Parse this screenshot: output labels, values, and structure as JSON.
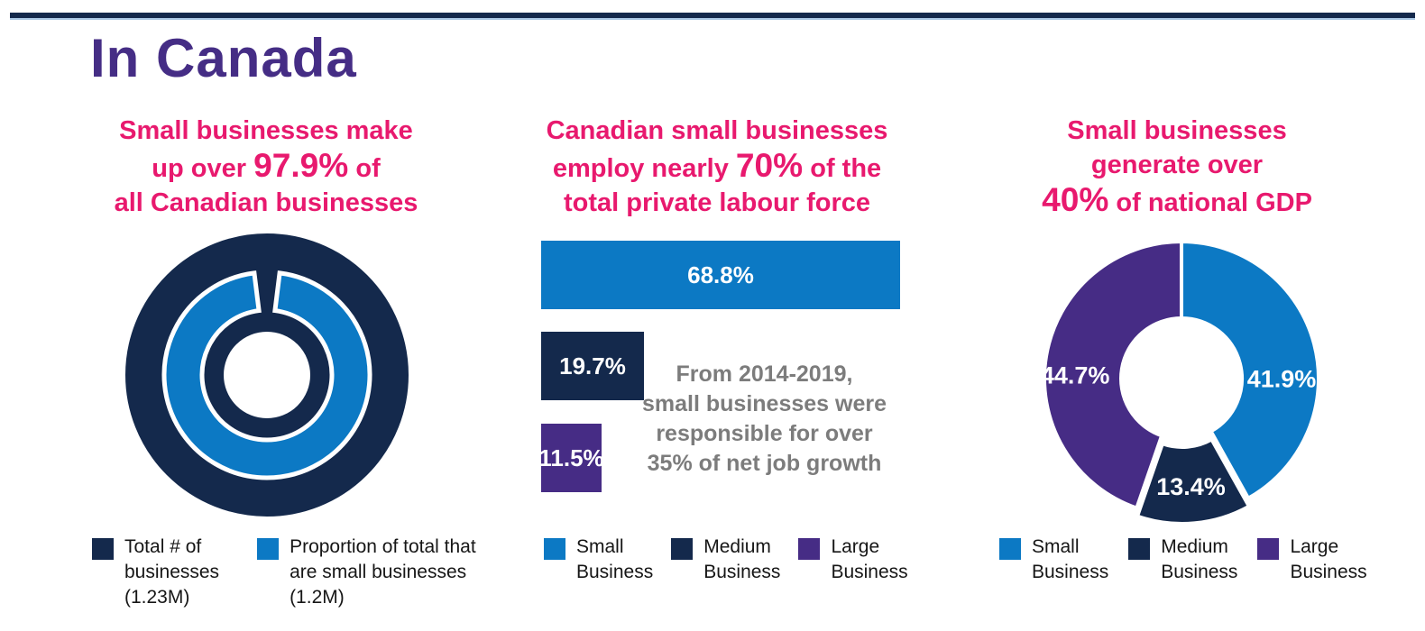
{
  "page": {
    "title": "In Canada"
  },
  "colors": {
    "navy": "#14294C",
    "blue": "#0C79C4",
    "purple": "#462C85",
    "pink": "#E8196E",
    "title_purple": "#452D85",
    "note_gray": "#7C7C7C",
    "legend_text": "#161616",
    "rule_light": "#A9C7E4",
    "white": "#FFFFFF"
  },
  "sections": {
    "makeup": {
      "heading": [
        {
          "pre": "Small businesses make"
        },
        {
          "pre": "up over ",
          "emph": "97.9%",
          "post": " of"
        },
        {
          "pre": "all Canadian businesses"
        }
      ],
      "legend": [
        {
          "color": "navy",
          "lines": [
            "Total # of",
            "businesses",
            "(1.23M)"
          ]
        },
        {
          "color": "blue",
          "lines": [
            "Proportion of total that",
            "are small businesses",
            "(1.2M)"
          ]
        }
      ]
    },
    "employment": {
      "heading": [
        {
          "pre": "Canadian small businesses"
        },
        {
          "pre": "employ nearly ",
          "emph": "70%",
          "post": " of the"
        },
        {
          "pre": "total private labour force"
        }
      ],
      "note_lines": [
        "From 2014-2019,",
        "small businesses were",
        "responsible for over",
        "35% of net job growth"
      ],
      "legend": [
        {
          "color": "blue",
          "lines": [
            "Small",
            "Business"
          ]
        },
        {
          "color": "navy",
          "lines": [
            "Medium",
            "Business"
          ]
        },
        {
          "color": "purple",
          "lines": [
            "Large",
            "Business"
          ]
        }
      ]
    },
    "gdp": {
      "heading": [
        {
          "pre": "Small businesses"
        },
        {
          "pre": "generate over"
        },
        {
          "emph": "40%",
          "post": " of national GDP"
        }
      ],
      "legend": [
        {
          "color": "blue",
          "lines": [
            "Small",
            "Business"
          ]
        },
        {
          "color": "navy",
          "lines": [
            "Medium",
            "Business"
          ]
        },
        {
          "color": "purple",
          "lines": [
            "Large",
            "Business"
          ]
        }
      ]
    }
  },
  "chart_data": [
    {
      "id": "makeup-donut",
      "type": "pie",
      "variant": "concentric-donut",
      "title": "Small businesses make up over 97.9% of all Canadian businesses",
      "series": [
        {
          "name": "Total # of businesses (1.23M)",
          "value": 100,
          "color": "navy"
        },
        {
          "name": "Proportion of total that are small businesses (1.2M)",
          "value": 97.9,
          "color": "blue"
        }
      ]
    },
    {
      "id": "employment-bars",
      "type": "bar",
      "orientation": "horizontal",
      "title": "Canadian small businesses employ nearly 70% of the total private labour force",
      "categories": [
        "Small Business",
        "Medium Business",
        "Large Business"
      ],
      "values": [
        68.8,
        19.7,
        11.5
      ],
      "labels": [
        "68.8%",
        "19.7%",
        "11.5%"
      ],
      "colors": [
        "blue",
        "navy",
        "purple"
      ],
      "annotation": "From 2014-2019, small businesses were responsible for over 35% of net job growth"
    },
    {
      "id": "gdp-donut",
      "type": "pie",
      "variant": "donut",
      "title": "Small businesses generate over 40% of national GDP",
      "categories": [
        "Small Business",
        "Medium Business",
        "Large Business"
      ],
      "values": [
        41.9,
        13.4,
        44.7
      ],
      "labels": [
        "41.9%",
        "13.4%",
        "44.7%"
      ],
      "colors": [
        "blue",
        "navy",
        "purple"
      ],
      "legend_position": "bottom"
    }
  ]
}
